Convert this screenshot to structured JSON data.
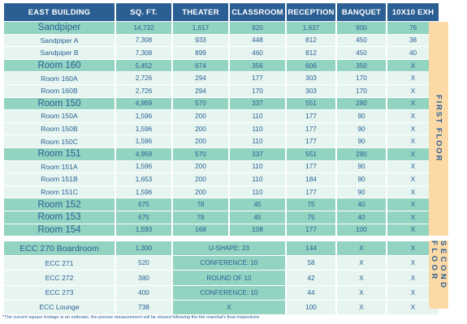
{
  "headers": [
    "EAST BUILDING",
    "SQ. FT.",
    "THEATER",
    "CLASSROOM",
    "RECEPTION",
    "BANQUET",
    "10X10 EXH"
  ],
  "first_floor_rows": [
    {
      "name": "Sandpiper",
      "sqft": "14,732",
      "theater": "1,617",
      "classroom": "920",
      "reception": "1,637",
      "banquet": "900",
      "exh": "76",
      "style": "teal",
      "big": true
    },
    {
      "name": "Sandpiper A",
      "sqft": "7,308",
      "theater": "933",
      "classroom": "448",
      "reception": "812",
      "banquet": "450",
      "exh": "38",
      "style": "mint",
      "big": false
    },
    {
      "name": "Sandpiper B",
      "sqft": "7,308",
      "theater": "899",
      "classroom": "460",
      "reception": "812",
      "banquet": "450",
      "exh": "40",
      "style": "mint",
      "big": false
    },
    {
      "name": "Room 160",
      "sqft": "5,452",
      "theater": "674",
      "classroom": "356",
      "reception": "606",
      "banquet": "350",
      "exh": "X",
      "style": "teal",
      "big": true
    },
    {
      "name": "Room 160A",
      "sqft": "2,726",
      "theater": "294",
      "classroom": "177",
      "reception": "303",
      "banquet": "170",
      "exh": "X",
      "style": "mint",
      "big": false
    },
    {
      "name": "Room 160B",
      "sqft": "2,726",
      "theater": "294",
      "classroom": "170",
      "reception": "303",
      "banquet": "170",
      "exh": "X",
      "style": "mint",
      "big": false
    },
    {
      "name": "Room 150",
      "sqft": "4,959",
      "theater": "570",
      "classroom": "337",
      "reception": "551",
      "banquet": "280",
      "exh": "X",
      "style": "teal",
      "big": true
    },
    {
      "name": "Room 150A",
      "sqft": "1,596",
      "theater": "200",
      "classroom": "110",
      "reception": "177",
      "banquet": "90",
      "exh": "X",
      "style": "mint",
      "big": false
    },
    {
      "name": "Room 150B",
      "sqft": "1,596",
      "theater": "200",
      "classroom": "110",
      "reception": "177",
      "banquet": "90",
      "exh": "X",
      "style": "mint",
      "big": false
    },
    {
      "name": "Room 150C",
      "sqft": "1,596",
      "theater": "200",
      "classroom": "110",
      "reception": "177",
      "banquet": "90",
      "exh": "X",
      "style": "mint",
      "big": false
    },
    {
      "name": "Room 151",
      "sqft": "4,959",
      "theater": "570",
      "classroom": "337",
      "reception": "551",
      "banquet": "280",
      "exh": "X",
      "style": "teal",
      "big": true
    },
    {
      "name": "Room 151A",
      "sqft": "1,596",
      "theater": "200",
      "classroom": "110",
      "reception": "177",
      "banquet": "90",
      "exh": "X",
      "style": "mint",
      "big": false
    },
    {
      "name": "Room 151B",
      "sqft": "1,653",
      "theater": "200",
      "classroom": "110",
      "reception": "184",
      "banquet": "90",
      "exh": "X",
      "style": "mint",
      "big": false
    },
    {
      "name": "Room 151C",
      "sqft": "1,596",
      "theater": "200",
      "classroom": "110",
      "reception": "177",
      "banquet": "90",
      "exh": "X",
      "style": "mint",
      "big": false
    },
    {
      "name": "Room 152",
      "sqft": "675",
      "theater": "78",
      "classroom": "45",
      "reception": "75",
      "banquet": "40",
      "exh": "X",
      "style": "teal",
      "big": true
    },
    {
      "name": "Room 153",
      "sqft": "675",
      "theater": "78",
      "classroom": "45",
      "reception": "75",
      "banquet": "40",
      "exh": "X",
      "style": "teal",
      "big": true
    },
    {
      "name": "Room 154",
      "sqft": "1,593",
      "theater": "168",
      "classroom": "108",
      "reception": "177",
      "banquet": "100",
      "exh": "X",
      "style": "teal",
      "big": true
    }
  ],
  "second_floor_rows": [
    {
      "name": "ECC 270 Boardroom",
      "sqft": "1,300",
      "seating": "U-SHAPE: 23",
      "reception": "144",
      "banquet": "X",
      "exh": "X",
      "style": "teal",
      "big": true
    },
    {
      "name": "ECC 271",
      "sqft": "520",
      "seating": "CONFERENCE: 10",
      "reception": "58",
      "banquet": "X",
      "exh": "X",
      "style": "mint",
      "big": false
    },
    {
      "name": "ECC 272",
      "sqft": "380",
      "seating": "ROUND OF 10",
      "reception": "42",
      "banquet": "X",
      "exh": "X",
      "style": "mint",
      "big": false
    },
    {
      "name": "ECC 273",
      "sqft": "400",
      "seating": "CONFERENCE: 10",
      "reception": "44",
      "banquet": "X",
      "exh": "X",
      "style": "mint",
      "big": false
    },
    {
      "name": "ECC Lounge",
      "sqft": "738",
      "seating": "X",
      "reception": "100",
      "banquet": "X",
      "exh": "X",
      "style": "mint",
      "big": false
    }
  ],
  "side_labels": {
    "first": "FIRST FLOOR",
    "second": "SECOND FLOOR"
  },
  "footnote": "*The current square footage is an estimate; the precise measurement will be shared following the fire marshal's final inspections",
  "colors": {
    "header": "#2b5e93",
    "teal": "#93d3c1",
    "mint": "#e6f5f0",
    "side": "#fdd9a6",
    "text": "#2a5f94"
  }
}
